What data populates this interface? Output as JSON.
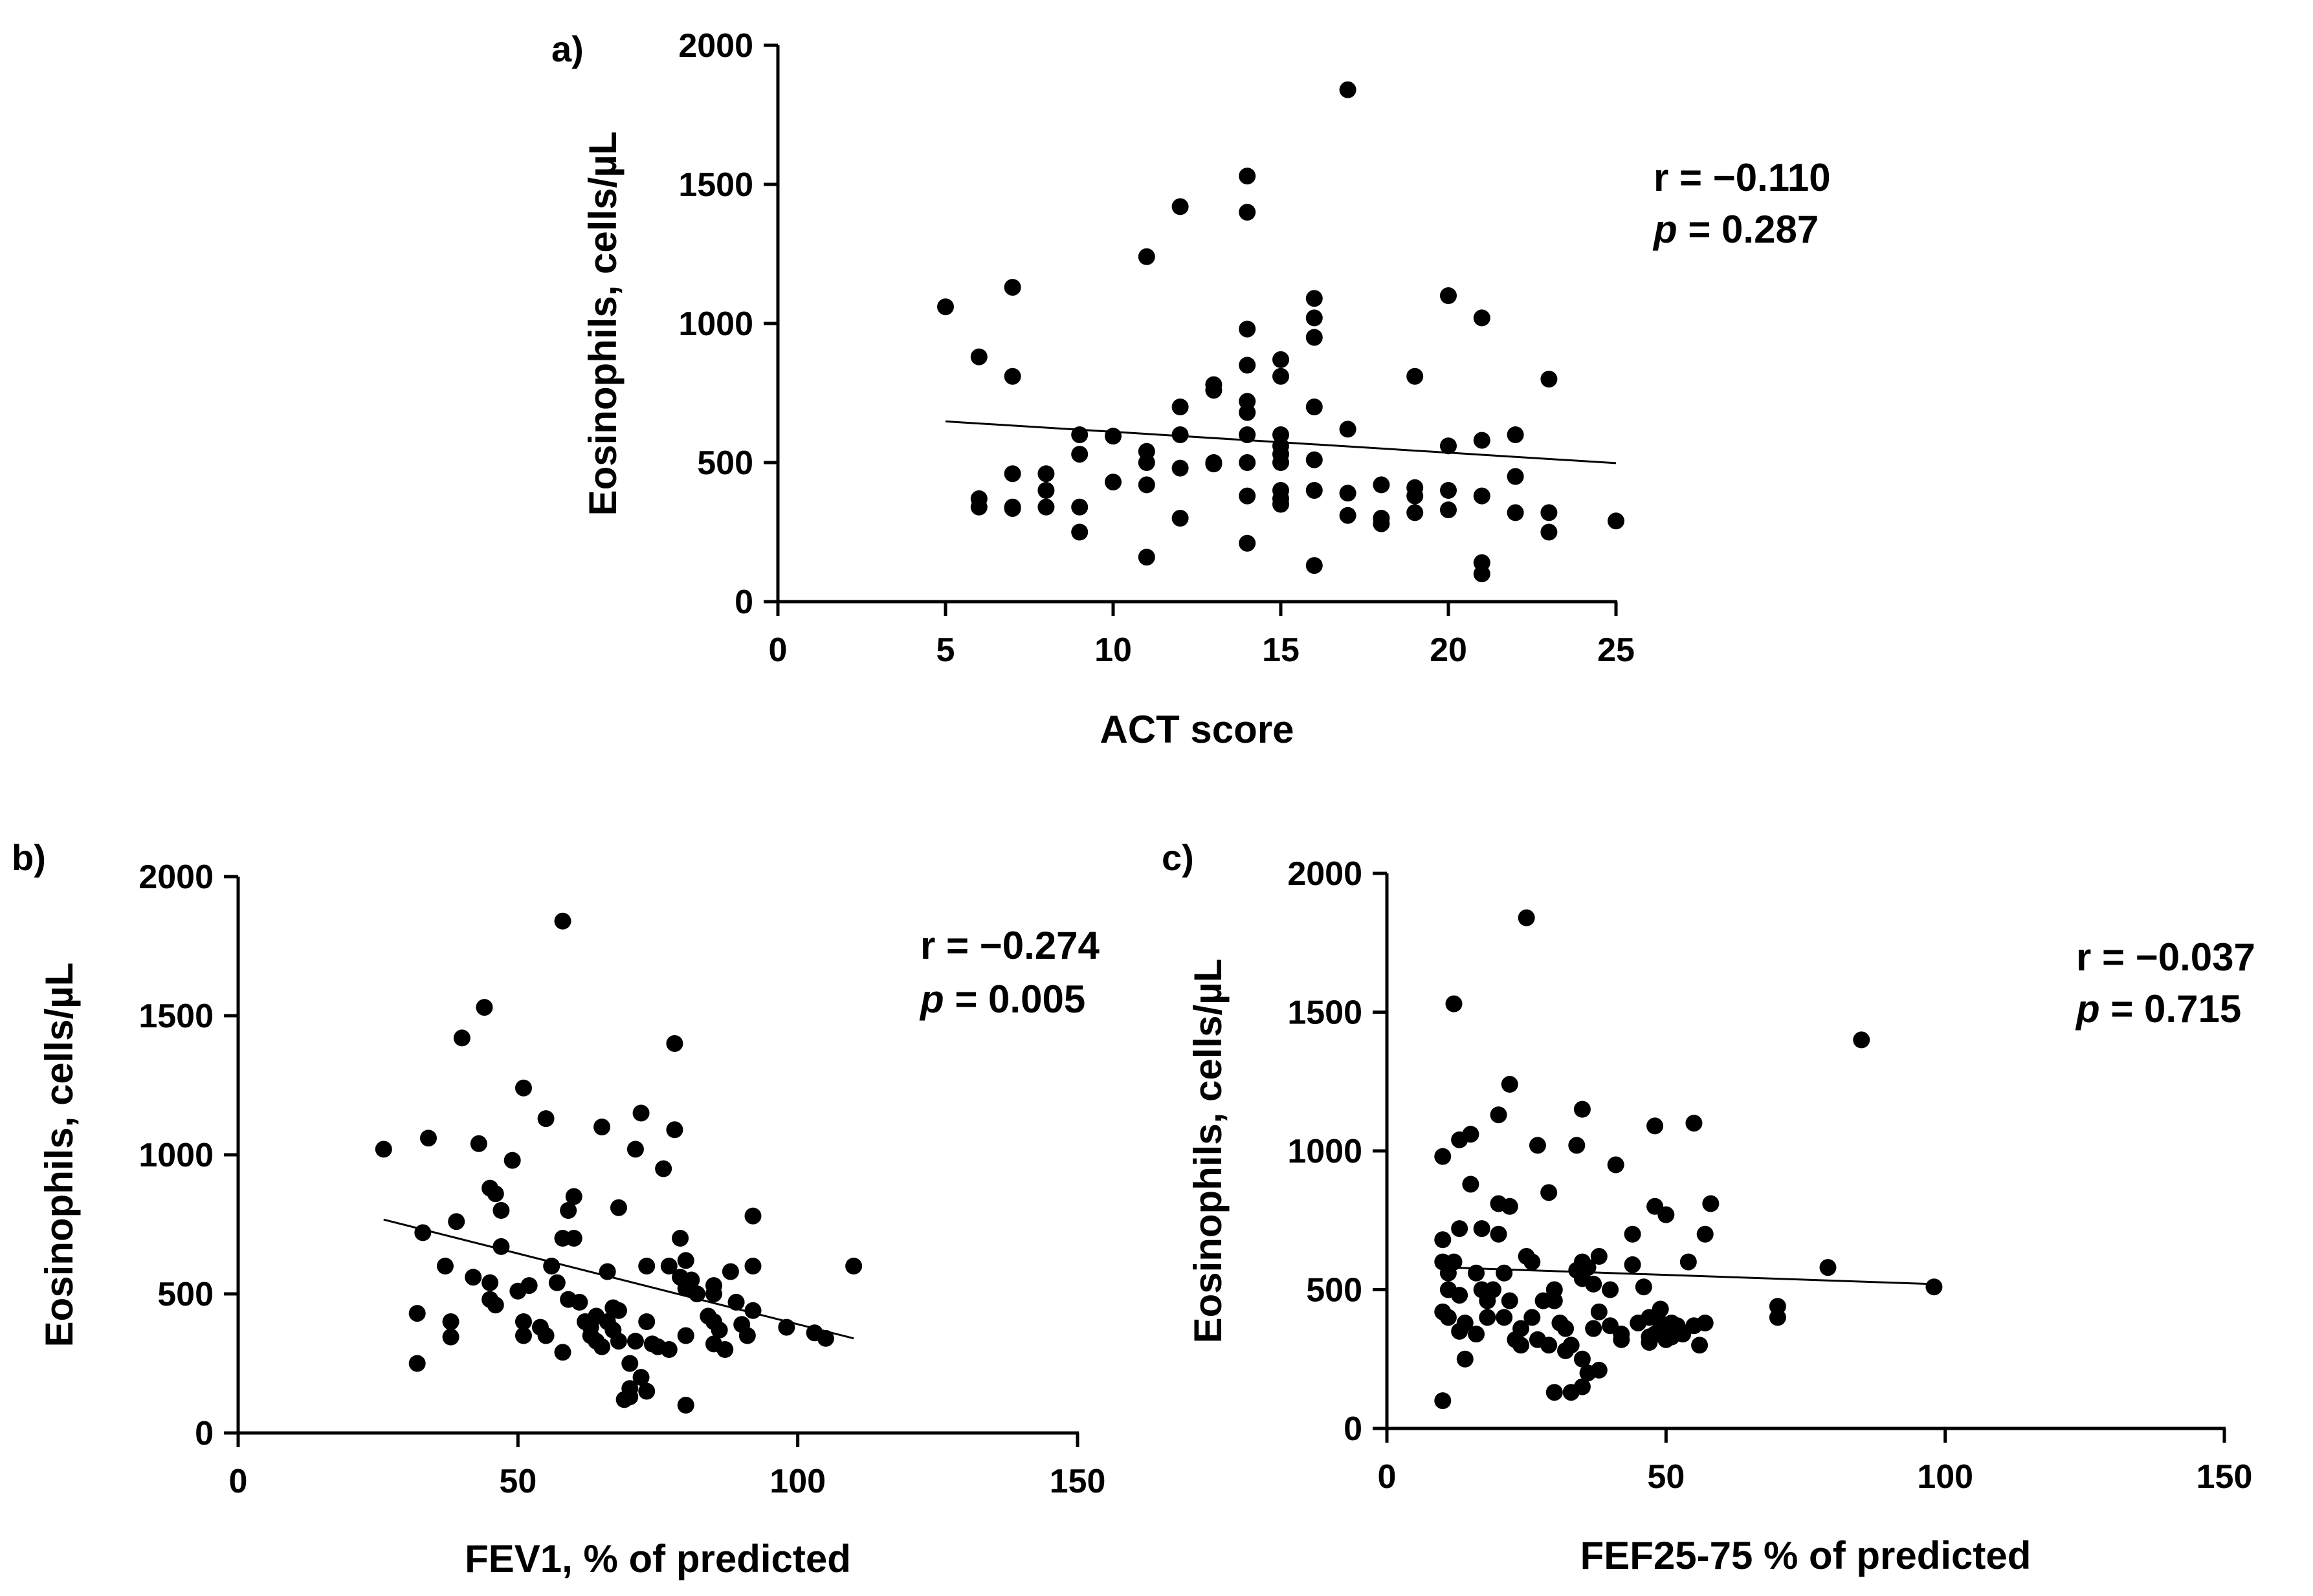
{
  "chart_data": [
    {
      "type": "scatter",
      "panel_label": "a)",
      "xlabel": "ACT score",
      "ylabel": "Eosinophils, cells/µL",
      "xlim": [
        0,
        25
      ],
      "ylim": [
        0,
        2000
      ],
      "xticks": [
        0,
        5,
        10,
        15,
        20,
        25
      ],
      "yticks": [
        0,
        500,
        1000,
        1500,
        2000
      ],
      "stat_r": "r = −0.110",
      "stat_p_letter": "p",
      "stat_p_value": " = 0.287",
      "trend": [
        [
          5,
          648
        ],
        [
          25,
          498
        ]
      ],
      "points": [
        [
          5,
          1060
        ],
        [
          6,
          880
        ],
        [
          6,
          370
        ],
        [
          6,
          340
        ],
        [
          7,
          1130
        ],
        [
          7,
          810
        ],
        [
          7,
          460
        ],
        [
          7,
          340
        ],
        [
          7,
          335
        ],
        [
          8,
          460
        ],
        [
          8,
          400
        ],
        [
          8,
          340
        ],
        [
          9,
          600
        ],
        [
          9,
          530
        ],
        [
          9,
          340
        ],
        [
          9,
          250
        ],
        [
          10,
          595
        ],
        [
          10,
          430
        ],
        [
          11,
          1240
        ],
        [
          11,
          540
        ],
        [
          11,
          500
        ],
        [
          11,
          420
        ],
        [
          11,
          160
        ],
        [
          12,
          1420
        ],
        [
          12,
          700
        ],
        [
          12,
          600
        ],
        [
          12,
          480
        ],
        [
          12,
          300
        ],
        [
          13,
          780
        ],
        [
          13,
          760
        ],
        [
          13,
          500
        ],
        [
          13,
          495
        ],
        [
          14,
          1530
        ],
        [
          14,
          1400
        ],
        [
          14,
          980
        ],
        [
          14,
          850
        ],
        [
          14,
          720
        ],
        [
          14,
          680
        ],
        [
          14,
          600
        ],
        [
          14,
          500
        ],
        [
          14,
          380
        ],
        [
          14,
          210
        ],
        [
          15,
          870
        ],
        [
          15,
          810
        ],
        [
          15,
          600
        ],
        [
          15,
          560
        ],
        [
          15,
          530
        ],
        [
          15,
          500
        ],
        [
          15,
          400
        ],
        [
          15,
          370
        ],
        [
          15,
          350
        ],
        [
          16,
          1090
        ],
        [
          16,
          1020
        ],
        [
          16,
          950
        ],
        [
          16,
          700
        ],
        [
          16,
          510
        ],
        [
          16,
          400
        ],
        [
          16,
          130
        ],
        [
          17,
          1840
        ],
        [
          17,
          620
        ],
        [
          17,
          390
        ],
        [
          17,
          310
        ],
        [
          18,
          420
        ],
        [
          18,
          300
        ],
        [
          18,
          280
        ],
        [
          19,
          810
        ],
        [
          19,
          410
        ],
        [
          19,
          380
        ],
        [
          19,
          320
        ],
        [
          20,
          1100
        ],
        [
          20,
          560
        ],
        [
          20,
          400
        ],
        [
          20,
          330
        ],
        [
          21,
          1020
        ],
        [
          21,
          580
        ],
        [
          21,
          380
        ],
        [
          21,
          140
        ],
        [
          21,
          100
        ],
        [
          22,
          600
        ],
        [
          22,
          450
        ],
        [
          22,
          320
        ],
        [
          23,
          800
        ],
        [
          23,
          320
        ],
        [
          23,
          250
        ],
        [
          25,
          290
        ]
      ]
    },
    {
      "type": "scatter",
      "panel_label": "b)",
      "xlabel": "FEV1, % of predicted",
      "ylabel": "Eosinophils, cells/µL",
      "xlim": [
        0,
        150
      ],
      "ylim": [
        0,
        2000
      ],
      "xticks": [
        0,
        50,
        100,
        150
      ],
      "yticks": [
        0,
        500,
        1000,
        1500,
        2000
      ],
      "stat_r": "r = −0.274",
      "stat_p_letter": "p",
      "stat_p_value": " = 0.005",
      "trend": [
        [
          26,
          767
        ],
        [
          110,
          340
        ]
      ],
      "points": [
        [
          26,
          1020
        ],
        [
          32,
          430
        ],
        [
          32,
          250
        ],
        [
          33,
          720
        ],
        [
          34,
          1060
        ],
        [
          37,
          600
        ],
        [
          38,
          400
        ],
        [
          38,
          345
        ],
        [
          39,
          760
        ],
        [
          40,
          1420
        ],
        [
          42,
          560
        ],
        [
          43,
          1040
        ],
        [
          44,
          1530
        ],
        [
          45,
          880
        ],
        [
          45,
          540
        ],
        [
          45,
          480
        ],
        [
          46,
          860
        ],
        [
          46,
          460
        ],
        [
          47,
          800
        ],
        [
          47,
          670
        ],
        [
          49,
          980
        ],
        [
          50,
          510
        ],
        [
          51,
          1240
        ],
        [
          51,
          400
        ],
        [
          51,
          350
        ],
        [
          52,
          530
        ],
        [
          54,
          380
        ],
        [
          55,
          1130
        ],
        [
          55,
          350
        ],
        [
          56,
          600
        ],
        [
          57,
          540
        ],
        [
          58,
          1840
        ],
        [
          58,
          700
        ],
        [
          58,
          290
        ],
        [
          59,
          800
        ],
        [
          59,
          480
        ],
        [
          60,
          850
        ],
        [
          60,
          700
        ],
        [
          61,
          470
        ],
        [
          62,
          400
        ],
        [
          63,
          380
        ],
        [
          63,
          350
        ],
        [
          64,
          420
        ],
        [
          64,
          330
        ],
        [
          65,
          1100
        ],
        [
          65,
          310
        ],
        [
          66,
          580
        ],
        [
          66,
          400
        ],
        [
          67,
          450
        ],
        [
          67,
          370
        ],
        [
          68,
          810
        ],
        [
          68,
          440
        ],
        [
          68,
          330
        ],
        [
          69,
          120
        ],
        [
          70,
          250
        ],
        [
          70,
          160
        ],
        [
          70,
          130
        ],
        [
          71,
          1020
        ],
        [
          71,
          330
        ],
        [
          72,
          1150
        ],
        [
          72,
          200
        ],
        [
          73,
          600
        ],
        [
          73,
          400
        ],
        [
          73,
          150
        ],
        [
          74,
          320
        ],
        [
          75,
          310
        ],
        [
          76,
          950
        ],
        [
          77,
          600
        ],
        [
          77,
          300
        ],
        [
          78,
          1090
        ],
        [
          78,
          1400
        ],
        [
          79,
          700
        ],
        [
          79,
          560
        ],
        [
          80,
          620
        ],
        [
          80,
          520
        ],
        [
          80,
          350
        ],
        [
          80,
          100
        ],
        [
          81,
          550
        ],
        [
          82,
          500
        ],
        [
          84,
          420
        ],
        [
          85,
          530
        ],
        [
          85,
          500
        ],
        [
          85,
          400
        ],
        [
          85,
          320
        ],
        [
          86,
          370
        ],
        [
          87,
          300
        ],
        [
          88,
          580
        ],
        [
          89,
          470
        ],
        [
          90,
          390
        ],
        [
          91,
          350
        ],
        [
          92,
          780
        ],
        [
          92,
          600
        ],
        [
          92,
          440
        ],
        [
          98,
          380
        ],
        [
          103,
          360
        ],
        [
          105,
          340
        ],
        [
          110,
          600
        ]
      ]
    },
    {
      "type": "scatter",
      "panel_label": "c)",
      "xlabel": "FEF25-75 % of predicted",
      "ylabel": "Eosinophils, cells/µL",
      "xlim": [
        0,
        150
      ],
      "ylim": [
        0,
        2000
      ],
      "xticks": [
        0,
        50,
        100,
        150
      ],
      "yticks": [
        0,
        500,
        1000,
        1500,
        2000
      ],
      "stat_r": "r = −0.037",
      "stat_p_letter": "p",
      "stat_p_value": " = 0.715",
      "trend": [
        [
          11,
          580
        ],
        [
          98,
          520
        ]
      ],
      "points": [
        [
          10,
          980
        ],
        [
          10,
          680
        ],
        [
          10,
          600
        ],
        [
          10,
          420
        ],
        [
          10,
          100
        ],
        [
          11,
          560
        ],
        [
          11,
          500
        ],
        [
          11,
          400
        ],
        [
          12,
          1530
        ],
        [
          12,
          600
        ],
        [
          13,
          1040
        ],
        [
          13,
          720
        ],
        [
          13,
          480
        ],
        [
          13,
          350
        ],
        [
          14,
          380
        ],
        [
          14,
          250
        ],
        [
          15,
          1060
        ],
        [
          15,
          880
        ],
        [
          16,
          560
        ],
        [
          16,
          340
        ],
        [
          17,
          720
        ],
        [
          17,
          500
        ],
        [
          18,
          460
        ],
        [
          18,
          400
        ],
        [
          19,
          500
        ],
        [
          20,
          810
        ],
        [
          20,
          1130
        ],
        [
          20,
          700
        ],
        [
          21,
          560
        ],
        [
          21,
          400
        ],
        [
          22,
          800
        ],
        [
          22,
          1240
        ],
        [
          22,
          460
        ],
        [
          23,
          320
        ],
        [
          24,
          360
        ],
        [
          24,
          300
        ],
        [
          25,
          1840
        ],
        [
          25,
          620
        ],
        [
          26,
          600
        ],
        [
          26,
          400
        ],
        [
          27,
          1020
        ],
        [
          27,
          320
        ],
        [
          28,
          460
        ],
        [
          29,
          850
        ],
        [
          29,
          300
        ],
        [
          30,
          500
        ],
        [
          30,
          460
        ],
        [
          30,
          130
        ],
        [
          31,
          380
        ],
        [
          32,
          360
        ],
        [
          32,
          280
        ],
        [
          33,
          300
        ],
        [
          33,
          130
        ],
        [
          34,
          1020
        ],
        [
          34,
          570
        ],
        [
          35,
          1150
        ],
        [
          35,
          600
        ],
        [
          35,
          540
        ],
        [
          35,
          250
        ],
        [
          35,
          150
        ],
        [
          36,
          580
        ],
        [
          36,
          200
        ],
        [
          37,
          520
        ],
        [
          37,
          360
        ],
        [
          38,
          620
        ],
        [
          38,
          420
        ],
        [
          38,
          210
        ],
        [
          40,
          500
        ],
        [
          40,
          370
        ],
        [
          41,
          950
        ],
        [
          42,
          340
        ],
        [
          42,
          320
        ],
        [
          44,
          700
        ],
        [
          44,
          590
        ],
        [
          45,
          380
        ],
        [
          46,
          510
        ],
        [
          47,
          400
        ],
        [
          47,
          330
        ],
        [
          47,
          310
        ],
        [
          48,
          1090
        ],
        [
          48,
          800
        ],
        [
          48,
          340
        ],
        [
          49,
          380
        ],
        [
          49,
          430
        ],
        [
          50,
          770
        ],
        [
          50,
          360
        ],
        [
          50,
          320
        ],
        [
          51,
          380
        ],
        [
          51,
          330
        ],
        [
          52,
          370
        ],
        [
          53,
          340
        ],
        [
          54,
          600
        ],
        [
          55,
          1100
        ],
        [
          55,
          370
        ],
        [
          56,
          300
        ],
        [
          57,
          700
        ],
        [
          57,
          380
        ],
        [
          58,
          810
        ],
        [
          70,
          440
        ],
        [
          70,
          400
        ],
        [
          79,
          580
        ],
        [
          85,
          1400
        ],
        [
          98,
          510
        ]
      ]
    }
  ]
}
